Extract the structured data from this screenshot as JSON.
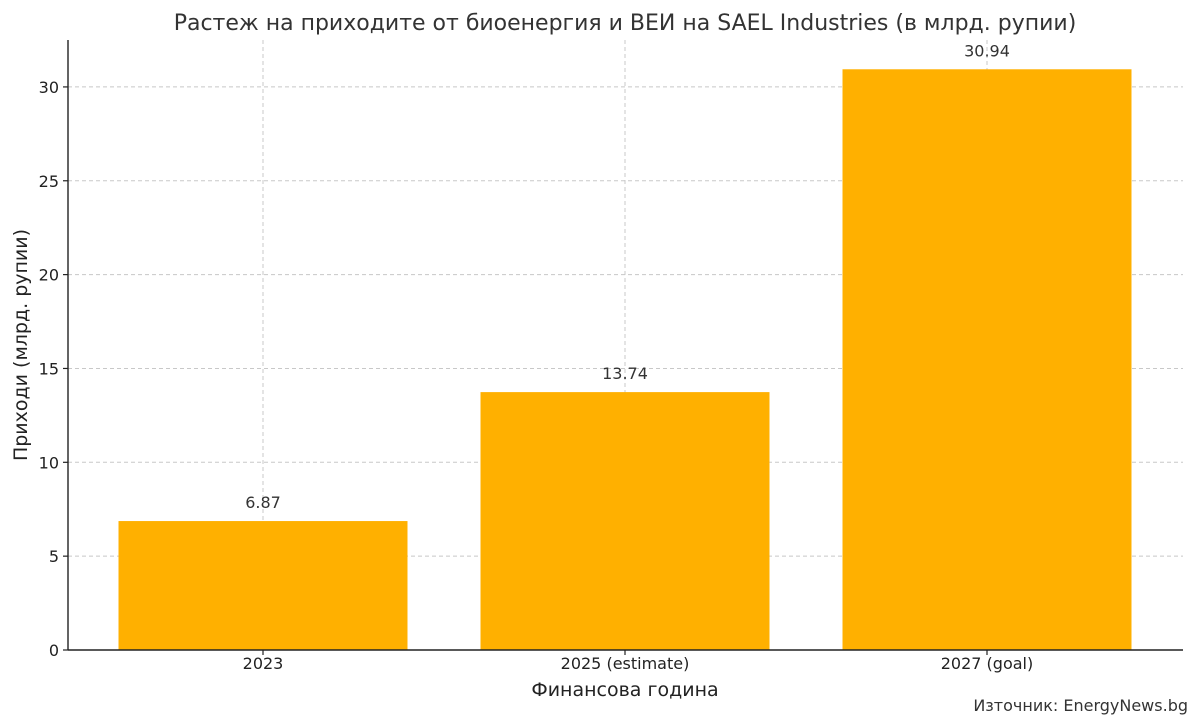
{
  "chart_data": {
    "type": "bar",
    "title": "Растеж на приходите от биоенергия и ВЕИ на SAEL Industries (в млрд. рупии)",
    "xlabel": "Финансова година",
    "ylabel": "Приходи (млрд. рупии)",
    "categories": [
      "2023",
      "2025 (estimate)",
      "2027 (goal)"
    ],
    "values": [
      6.87,
      13.74,
      30.94
    ],
    "value_labels": [
      "6.87",
      "13.74",
      "30.94"
    ],
    "ylim": [
      0,
      32.5
    ],
    "yticks": [
      0,
      5,
      10,
      15,
      20,
      25,
      30
    ],
    "ytick_labels": [
      "0",
      "5",
      "10",
      "15",
      "20",
      "25",
      "30"
    ],
    "grid": true,
    "bar_color": "#FFB000"
  },
  "source": "Източник: EnergyNews.bg"
}
